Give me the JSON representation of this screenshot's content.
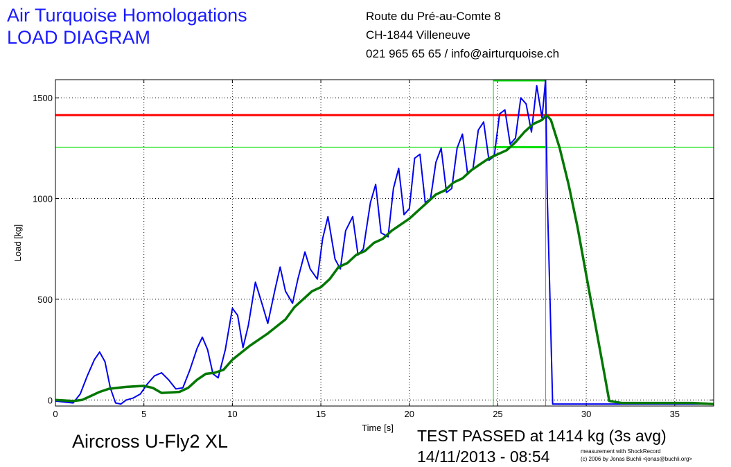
{
  "header": {
    "company_name": "Air Turquoise Homologations",
    "diagram_title": "LOAD DIAGRAM",
    "address_line1": "Route du Pré-au-Comte 8",
    "address_line2": "CH-1844 Villeneuve",
    "address_line3": "021 965 65 65 / info@airturquoise.ch"
  },
  "footer": {
    "model": "Aircross U-Fly2 XL",
    "result": "TEST PASSED at 1414 kg (3s avg)",
    "datetime": "14/11/2013 - 08:54",
    "credit_line1": "measurement with ShockRecord",
    "credit_line2": "(c) 2006 by Jonas Buchli <jonas@buchli.org>"
  },
  "chart_data": {
    "type": "line",
    "title": "",
    "xlabel": "Time [s]",
    "ylabel": "Load [kg]",
    "xlim": [
      0,
      37.2
    ],
    "ylim": [
      -30,
      1590
    ],
    "xticks": [
      0,
      5,
      10,
      15,
      20,
      25,
      30,
      35
    ],
    "yticks": [
      0,
      500,
      1000,
      1500
    ],
    "grid": true,
    "colors": {
      "raw": "#0000ee",
      "avg": "#007700",
      "limit": "#ff0000",
      "marker": "#00dd00"
    },
    "reference_lines": {
      "limit_load": 1414,
      "passed_level": 1255,
      "marker_times": [
        24.75,
        27.7
      ]
    },
    "series": [
      {
        "x": [
          0,
          0.5,
          1.0,
          1.4,
          1.8,
          2.2,
          2.5,
          2.8,
          3.1,
          3.4,
          3.7,
          4.0,
          4.4,
          4.8,
          5.2,
          5.6,
          6.0,
          6.4,
          6.8,
          7.2,
          7.6,
          8.0,
          8.3,
          8.6,
          8.9,
          9.2,
          9.6,
          10.0,
          10.3,
          10.6,
          10.9,
          11.3,
          11.7,
          12.0,
          12.4,
          12.7,
          13.0,
          13.4,
          13.7,
          14.1,
          14.4,
          14.8,
          15.1,
          15.4,
          15.8,
          16.1,
          16.4,
          16.8,
          17.1,
          17.4,
          17.8,
          18.1,
          18.4,
          18.8,
          19.1,
          19.4,
          19.7,
          20.0,
          20.3,
          20.6,
          20.9,
          21.2,
          21.5,
          21.8,
          22.1,
          22.4,
          22.7,
          23.0,
          23.3,
          23.6,
          23.9,
          24.2,
          24.5,
          24.8,
          25.1,
          25.4,
          25.7,
          26.0,
          26.3,
          26.6,
          26.9,
          27.2,
          27.5,
          27.7,
          27.8,
          27.95,
          28.1,
          28.5,
          30.0,
          32.0,
          34.0,
          36.0,
          37.2
        ],
        "values": [
          -5,
          -10,
          -15,
          30,
          120,
          200,
          238,
          190,
          60,
          -15,
          -20,
          0,
          10,
          30,
          80,
          120,
          135,
          100,
          55,
          60,
          150,
          255,
          312,
          250,
          130,
          110,
          250,
          455,
          420,
          260,
          370,
          585,
          470,
          380,
          545,
          660,
          540,
          480,
          600,
          735,
          650,
          600,
          800,
          910,
          700,
          650,
          840,
          910,
          720,
          750,
          980,
          1070,
          830,
          810,
          1050,
          1150,
          920,
          950,
          1200,
          1220,
          980,
          1000,
          1180,
          1250,
          1030,
          1050,
          1250,
          1320,
          1120,
          1150,
          1340,
          1380,
          1190,
          1210,
          1420,
          1440,
          1270,
          1300,
          1500,
          1470,
          1330,
          1560,
          1400,
          1590,
          1000,
          500,
          -20,
          -20,
          -20,
          -20,
          -20,
          -20,
          -20
        ]
      },
      {
        "x": [
          0,
          1.0,
          1.5,
          2.0,
          2.5,
          3.0,
          3.5,
          4.0,
          5.0,
          5.5,
          6.0,
          7.0,
          7.5,
          8.0,
          8.5,
          9.0,
          9.5,
          10.0,
          11.0,
          12.0,
          13.0,
          13.5,
          14.0,
          14.5,
          15.0,
          15.5,
          16.0,
          16.5,
          17.0,
          17.5,
          18.0,
          18.5,
          19.0,
          19.5,
          20.0,
          20.5,
          21.0,
          21.5,
          22.0,
          22.5,
          23.0,
          23.5,
          24.0,
          24.5,
          25.0,
          25.5,
          26.0,
          26.5,
          27.0,
          27.5,
          27.75,
          28.0,
          28.5,
          29.0,
          29.5,
          30.0,
          30.5,
          31.0,
          31.3,
          32.0,
          34.0,
          36.0,
          37.2
        ],
        "values": [
          0,
          -5,
          0,
          20,
          40,
          55,
          60,
          65,
          70,
          60,
          35,
          40,
          60,
          100,
          130,
          135,
          150,
          200,
          270,
          330,
          400,
          460,
          500,
          540,
          560,
          600,
          660,
          680,
          720,
          740,
          780,
          800,
          840,
          870,
          900,
          940,
          980,
          1020,
          1040,
          1080,
          1100,
          1140,
          1170,
          1200,
          1220,
          1240,
          1280,
          1330,
          1370,
          1390,
          1414,
          1390,
          1250,
          1070,
          860,
          620,
          380,
          140,
          -5,
          -15,
          -15,
          -15,
          -20
        ]
      }
    ]
  }
}
